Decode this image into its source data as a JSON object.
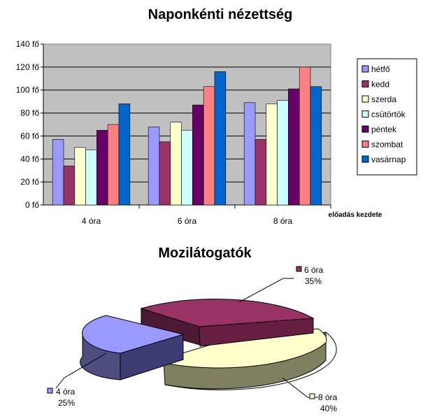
{
  "chart_data": [
    {
      "type": "bar",
      "title": "Naponkénti nézettség",
      "xlabel": "előadás kezdete",
      "ylabel": "",
      "ylim": [
        0,
        140
      ],
      "yticks": [
        "0 fő",
        "20 fő",
        "40 fő",
        "60 fő",
        "80 fő",
        "100 fő",
        "120 fő",
        "140 fő"
      ],
      "grid": true,
      "legend_position": "right",
      "categories": [
        "4 óra",
        "6 óra",
        "8 óra"
      ],
      "series": [
        {
          "name": "hétfő",
          "color": "#9999ff",
          "values": [
            57,
            68,
            89
          ]
        },
        {
          "name": "kedd",
          "color": "#993366",
          "values": [
            34,
            55,
            57
          ]
        },
        {
          "name": "szerda",
          "color": "#ffffcc",
          "values": [
            50,
            72,
            88
          ]
        },
        {
          "name": "csütörtök",
          "color": "#ccffff",
          "values": [
            48,
            65,
            91
          ]
        },
        {
          "name": "péntek",
          "color": "#660066",
          "values": [
            65,
            87,
            101
          ]
        },
        {
          "name": "szombat",
          "color": "#ff8080",
          "values": [
            70,
            103,
            120
          ]
        },
        {
          "name": "vasárnap",
          "color": "#0066cc",
          "values": [
            88,
            116,
            103
          ]
        }
      ]
    },
    {
      "type": "pie",
      "title": "Mozilátogatók",
      "three_d": true,
      "categories": [
        "6 óra",
        "8 óra",
        "4 óra"
      ],
      "values": [
        35,
        40,
        25
      ],
      "labels": [
        "35%",
        "40%",
        "25%"
      ],
      "colors": [
        "#993366",
        "#ffffcc",
        "#9999ff"
      ]
    }
  ]
}
